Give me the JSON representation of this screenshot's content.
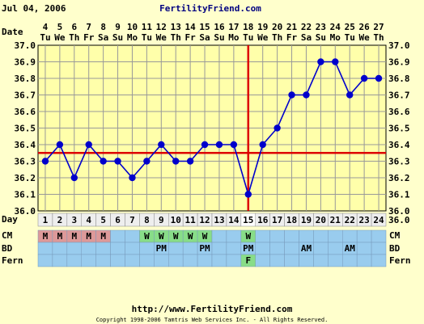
{
  "header": {
    "date": "Jul 04, 2006",
    "site": "FertilityFriend.com"
  },
  "row_labels": {
    "date": "Date",
    "day": "Day",
    "cm": "CM",
    "bd": "BD",
    "fern": "Fern"
  },
  "footer": {
    "url": "http://www.FertilityFriend.com",
    "copyright": "Copyright 1998-2006 Tamtris Web Services Inc. - All Rights Reserved."
  },
  "colors": {
    "background": "#ffffcc",
    "plot_bg": "#ffffaa",
    "grid": "#999999",
    "line": "#0000cc",
    "coverline": "#dd0000",
    "row_blue": "#99ccee",
    "row_white": "#eeeeee",
    "cm_m": "#dd9999",
    "cm_w": "#88dd88",
    "fern_f": "#88dd88"
  },
  "chart_data": {
    "type": "line",
    "dates": [
      "4",
      "5",
      "6",
      "7",
      "8",
      "9",
      "10",
      "11",
      "12",
      "13",
      "14",
      "15",
      "16",
      "17",
      "18",
      "19",
      "20",
      "21",
      "22",
      "23",
      "24",
      "25",
      "26",
      "27"
    ],
    "weekdays": [
      "Tu",
      "We",
      "Th",
      "Fr",
      "Sa",
      "Su",
      "Mo",
      "Tu",
      "We",
      "Th",
      "Fr",
      "Sa",
      "Su",
      "Mo",
      "Tu",
      "We",
      "Th",
      "Fr",
      "Sa",
      "Su",
      "Mo",
      "Tu",
      "We",
      "Th"
    ],
    "days": [
      "1",
      "2",
      "3",
      "4",
      "5",
      "6",
      "7",
      "8",
      "9",
      "10",
      "11",
      "12",
      "13",
      "14",
      "15",
      "16",
      "17",
      "18",
      "19",
      "20",
      "21",
      "22",
      "23",
      "24"
    ],
    "temps": [
      36.3,
      36.4,
      36.2,
      36.4,
      36.3,
      36.3,
      36.2,
      36.3,
      36.4,
      36.3,
      36.3,
      36.4,
      36.4,
      36.4,
      36.1,
      36.4,
      36.5,
      36.7,
      36.7,
      36.9,
      36.9,
      36.7,
      36.8,
      36.8
    ],
    "yticks": [
      "37.0",
      "36.9",
      "36.8",
      "36.7",
      "36.6",
      "36.5",
      "36.4",
      "36.3",
      "36.2",
      "36.1",
      "36.0"
    ],
    "ylim": [
      36.0,
      37.0
    ],
    "coverline": 36.35,
    "ovulation_day": 15,
    "cm": [
      "M",
      "M",
      "M",
      "M",
      "M",
      "",
      "",
      "W",
      "W",
      "W",
      "W",
      "W",
      "",
      "",
      "W",
      "",
      "",
      "",
      "",
      "",
      "",
      "",
      "",
      ""
    ],
    "bd": [
      "",
      "",
      "",
      "",
      "",
      "",
      "",
      "",
      "PM",
      "",
      "",
      "PM",
      "",
      "",
      "PM",
      "",
      "",
      "",
      "AM",
      "",
      "",
      "AM",
      "",
      ""
    ],
    "fern": [
      "",
      "",
      "",
      "",
      "",
      "",
      "",
      "",
      "",
      "",
      "",
      "",
      "",
      "",
      "F",
      "",
      "",
      "",
      "",
      "",
      "",
      "",
      "",
      ""
    ]
  }
}
